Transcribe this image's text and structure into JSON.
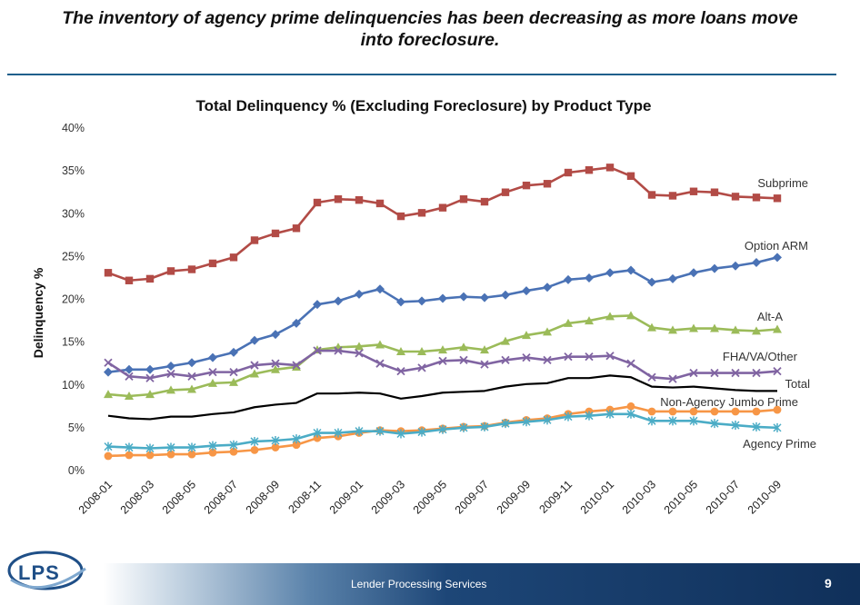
{
  "slide": {
    "headline_line1": "The inventory of agency prime delinquencies has been decreasing as more loans move",
    "headline_line2": "into foreclosure.",
    "footer_text": "Lender Processing Services",
    "page_number": "9",
    "logo_text": "LPS",
    "colors": {
      "rule": "#1f5f8b",
      "footer_dark": "#10305a",
      "logo_blue": "#1f4f87"
    }
  },
  "chart_data": {
    "type": "line",
    "title": "Total Delinquency % (Excluding Foreclosure) by Product Type",
    "xlabel": "",
    "ylabel": "Delinquency %",
    "ylim": [
      0,
      40
    ],
    "yticks": [
      "0%",
      "5%",
      "10%",
      "15%",
      "20%",
      "25%",
      "30%",
      "35%",
      "40%"
    ],
    "grid": false,
    "legend": "labels at line ends (right)",
    "categories": [
      "2008-01",
      "2008-02",
      "2008-03",
      "2008-04",
      "2008-05",
      "2008-06",
      "2008-07",
      "2008-08",
      "2008-09",
      "2008-10",
      "2008-11",
      "2008-12",
      "2009-01",
      "2009-02",
      "2009-03",
      "2009-04",
      "2009-05",
      "2009-06",
      "2009-07",
      "2009-08",
      "2009-09",
      "2009-10",
      "2009-11",
      "2009-12",
      "2010-01",
      "2010-02",
      "2010-03",
      "2010-04",
      "2010-05",
      "2010-06",
      "2010-07",
      "2010-08",
      "2010-09"
    ],
    "xtick_labels": [
      "2008-01",
      "2008-03",
      "2008-05",
      "2008-07",
      "2008-09",
      "2008-11",
      "2009-01",
      "2009-03",
      "2009-05",
      "2009-07",
      "2009-09",
      "2009-11",
      "2010-01",
      "2010-03",
      "2010-05",
      "2010-07",
      "2010-09"
    ],
    "series": [
      {
        "name": "Subprime",
        "color": "#b24b46",
        "marker": "square",
        "values": [
          23.1,
          22.2,
          22.4,
          23.3,
          23.5,
          24.2,
          24.9,
          26.9,
          27.7,
          28.3,
          31.3,
          31.7,
          31.6,
          31.2,
          29.7,
          30.1,
          30.7,
          31.7,
          31.4,
          32.5,
          33.3,
          33.5,
          34.8,
          35.1,
          35.4,
          34.4,
          32.2,
          32.1,
          32.6,
          32.5,
          32.0,
          31.9,
          31.8
        ]
      },
      {
        "name": "Option ARM",
        "color": "#4a72b5",
        "marker": "diamond",
        "values": [
          11.5,
          11.8,
          11.8,
          12.2,
          12.6,
          13.2,
          13.8,
          15.2,
          15.9,
          17.2,
          19.4,
          19.8,
          20.6,
          21.2,
          19.7,
          19.8,
          20.1,
          20.3,
          20.2,
          20.5,
          21.0,
          21.4,
          22.3,
          22.5,
          23.1,
          23.4,
          22.0,
          22.4,
          23.1,
          23.6,
          23.9,
          24.3,
          24.9
        ]
      },
      {
        "name": "Alt-A",
        "color": "#9bbb59",
        "marker": "triangle",
        "values": [
          8.9,
          8.7,
          8.9,
          9.4,
          9.5,
          10.2,
          10.3,
          11.3,
          11.8,
          12.1,
          14.1,
          14.4,
          14.5,
          14.7,
          13.9,
          13.9,
          14.1,
          14.4,
          14.1,
          15.1,
          15.8,
          16.2,
          17.2,
          17.5,
          18.0,
          18.1,
          16.7,
          16.4,
          16.6,
          16.6,
          16.4,
          16.3,
          16.5
        ]
      },
      {
        "name": "FHA/VA/Other",
        "color": "#8064a2",
        "marker": "x",
        "values": [
          12.6,
          11.0,
          10.8,
          11.3,
          11.0,
          11.5,
          11.5,
          12.3,
          12.5,
          12.3,
          14.0,
          14.0,
          13.7,
          12.5,
          11.6,
          12.0,
          12.8,
          12.9,
          12.4,
          12.9,
          13.2,
          12.9,
          13.3,
          13.3,
          13.4,
          12.5,
          10.9,
          10.7,
          11.4,
          11.4,
          11.4,
          11.4,
          11.6
        ]
      },
      {
        "name": "Total",
        "color": "#000000",
        "marker": "none",
        "values": [
          6.4,
          6.1,
          6.0,
          6.3,
          6.3,
          6.6,
          6.8,
          7.4,
          7.7,
          7.9,
          9.0,
          9.0,
          9.1,
          9.0,
          8.4,
          8.7,
          9.1,
          9.2,
          9.3,
          9.8,
          10.1,
          10.2,
          10.8,
          10.8,
          11.1,
          10.9,
          9.8,
          9.7,
          9.8,
          9.6,
          9.4,
          9.3,
          9.3
        ]
      },
      {
        "name": "Non-Agency Jumbo Prime",
        "color": "#f79646",
        "marker": "circle",
        "values": [
          1.7,
          1.8,
          1.8,
          1.9,
          1.9,
          2.1,
          2.2,
          2.4,
          2.7,
          3.0,
          3.8,
          4.0,
          4.4,
          4.7,
          4.6,
          4.7,
          4.9,
          5.1,
          5.2,
          5.6,
          5.9,
          6.1,
          6.6,
          6.9,
          7.1,
          7.5,
          6.9,
          6.9,
          6.9,
          6.9,
          6.9,
          6.9,
          7.1
        ]
      },
      {
        "name": "Agency Prime",
        "color": "#4bacc6",
        "marker": "star",
        "values": [
          2.8,
          2.7,
          2.6,
          2.7,
          2.7,
          2.9,
          3.0,
          3.4,
          3.5,
          3.7,
          4.4,
          4.4,
          4.6,
          4.6,
          4.3,
          4.5,
          4.8,
          5.0,
          5.1,
          5.5,
          5.7,
          5.9,
          6.3,
          6.4,
          6.6,
          6.6,
          5.8,
          5.8,
          5.8,
          5.5,
          5.3,
          5.1,
          5.0
        ]
      }
    ]
  }
}
